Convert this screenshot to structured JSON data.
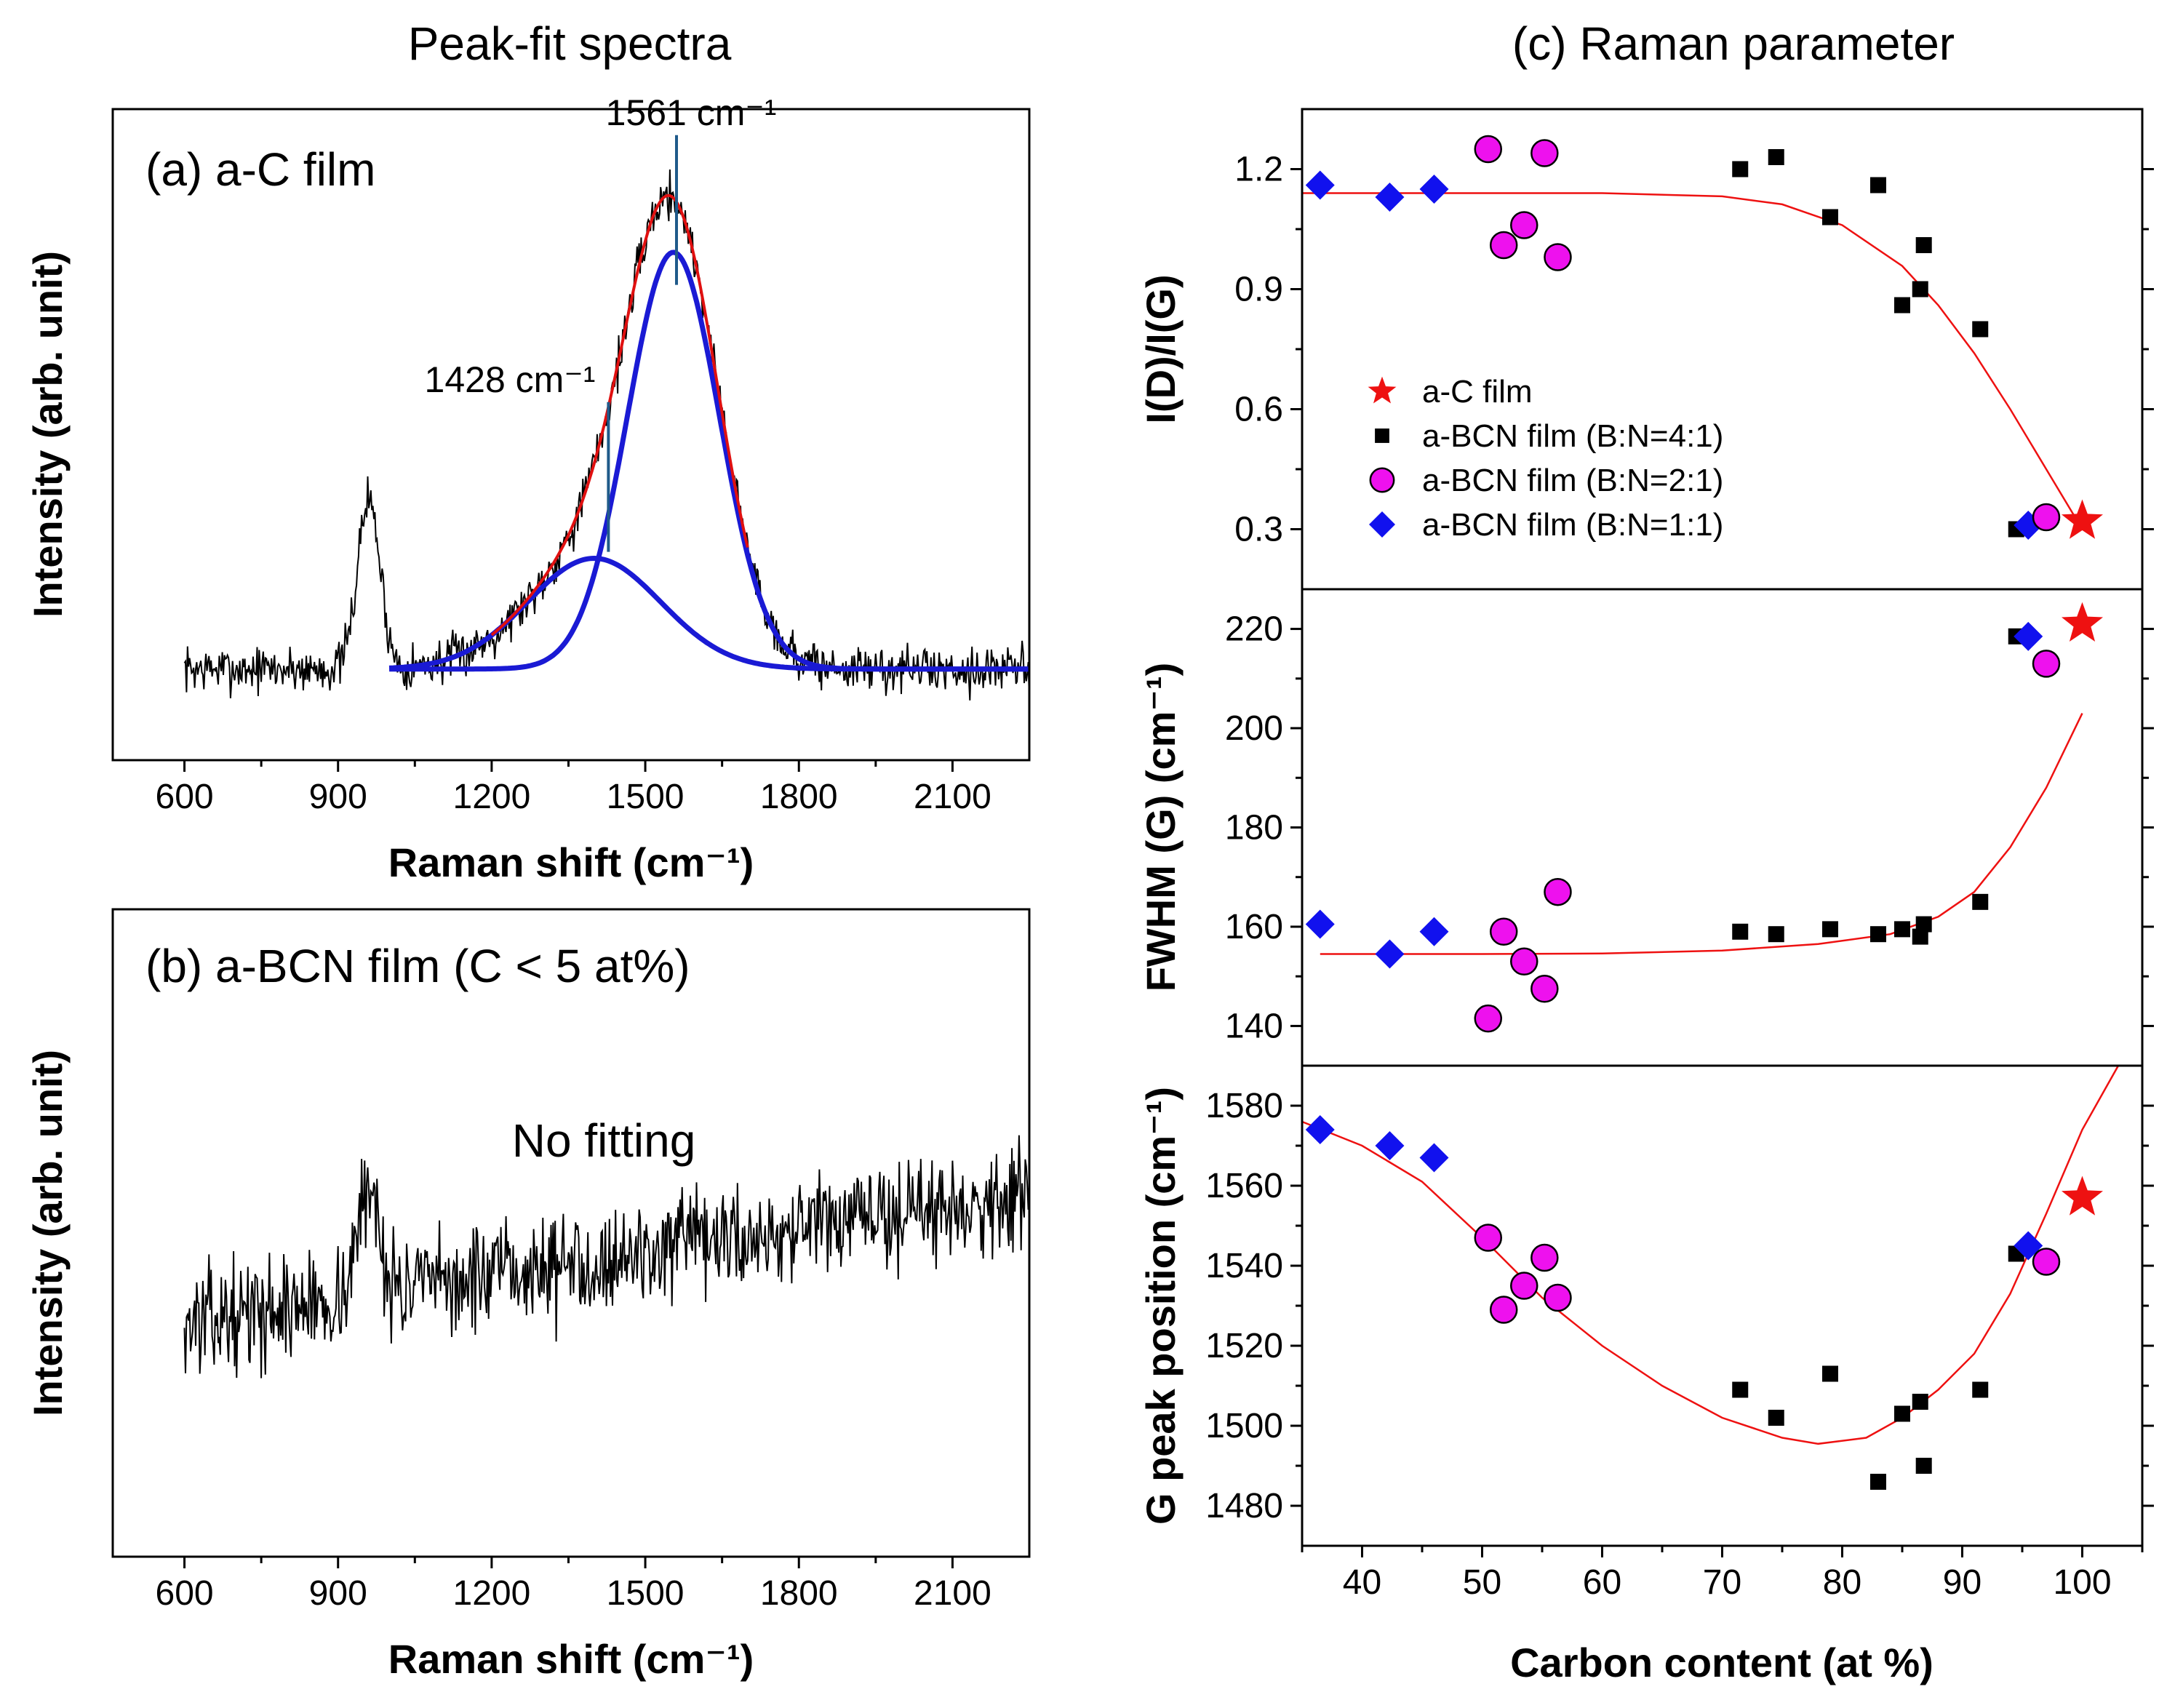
{
  "headings": {
    "left": "Peak-fit spectra",
    "right": "(c) Raman parameter"
  },
  "colors": {
    "spectrum": "#000000",
    "fit_component": "#1a1ad4",
    "fit_sum": "#e01010",
    "marker_line": "#1f5a8a",
    "ac_film": "#ee1111",
    "bcn_4to1": "#000000",
    "bcn_2to1": "#ee11ee",
    "bcn_1to1": "#1111ee",
    "trend": "#ee1111"
  },
  "chart_data": [
    {
      "id": "a",
      "type": "line",
      "panel_label": "(a) a-C film",
      "xlabel": "Raman shift (cm⁻¹)",
      "ylabel": "Intensity (arb. unit)",
      "xlim": [
        460,
        2250
      ],
      "ylim": [
        0,
        1
      ],
      "x_ticks": [
        600,
        900,
        1200,
        1500,
        1800,
        2100
      ],
      "x_tick_labels": [
        "600",
        "900",
        "1200",
        "1500",
        "1800",
        "2100"
      ],
      "spectrum": {
        "x_range": [
          600,
          2250
        ],
        "step": 2,
        "baseline": 0.14,
        "noise": 0.022,
        "seed": 7,
        "bumps": [
          {
            "center": 960,
            "width": 22,
            "height": 0.26
          }
        ]
      },
      "fit_components": [
        {
          "center": 1400,
          "sigma": 130,
          "height": 0.17
        },
        {
          "center": 1555,
          "sigma": 90,
          "height": 0.64
        }
      ],
      "fit_baseline": 0.14,
      "fit_range": [
        1000,
        2250
      ],
      "peak_markers": [
        {
          "x": 1428,
          "y_from": 0.32,
          "y_to": 0.55,
          "label": "1428 cm⁻¹"
        },
        {
          "x": 1561,
          "y_from": 0.73,
          "y_to": 0.96,
          "label": "1561 cm⁻¹"
        }
      ]
    },
    {
      "id": "b",
      "type": "line",
      "panel_label": "(b) a-BCN film (C < 5 at%)",
      "annotation": "No fitting",
      "xlabel": "Raman shift (cm⁻¹)",
      "ylabel": "Intensity (arb. unit)",
      "xlim": [
        460,
        2250
      ],
      "ylim": [
        0,
        1
      ],
      "x_ticks": [
        600,
        900,
        1200,
        1500,
        1800,
        2100
      ],
      "x_tick_labels": [
        "600",
        "900",
        "1200",
        "1500",
        "1800",
        "2100"
      ],
      "spectrum": {
        "x_range": [
          600,
          2250
        ],
        "step": 2,
        "baseline_start": 0.36,
        "baseline_end": 0.56,
        "noise": 0.05,
        "seed": 13,
        "bumps": [
          {
            "center": 960,
            "width": 22,
            "height": 0.16
          }
        ]
      }
    },
    {
      "id": "c1",
      "type": "scatter",
      "ylabel": "I(D)/I(G)",
      "xlim": [
        35,
        105
      ],
      "ylim": [
        0.15,
        1.35
      ],
      "y_ticks": [
        0.3,
        0.6,
        0.9,
        1.2
      ],
      "y_tick_labels": [
        "0.3",
        "0.6",
        "0.9",
        "1.2"
      ],
      "series": [
        {
          "name": "a-C film",
          "marker": "star",
          "points": [
            [
              100,
              0.32
            ]
          ]
        },
        {
          "name": "a-BCN film (B:N=4:1)",
          "marker": "square",
          "points": [
            [
              71.5,
              1.2
            ],
            [
              74.5,
              1.23
            ],
            [
              79,
              1.08
            ],
            [
              83,
              1.16
            ],
            [
              85,
              0.86
            ],
            [
              86.5,
              0.9
            ],
            [
              86.8,
              1.01
            ],
            [
              91.5,
              0.8
            ],
            [
              94.5,
              0.3
            ]
          ]
        },
        {
          "name": "a-BCN film (B:N=2:1)",
          "marker": "circle",
          "points": [
            [
              50.5,
              1.25
            ],
            [
              51.8,
              1.01
            ],
            [
              53.5,
              1.06
            ],
            [
              55.2,
              1.24
            ],
            [
              56.3,
              0.98
            ],
            [
              97,
              0.33
            ]
          ]
        },
        {
          "name": "a-BCN film (B:N=1:1)",
          "marker": "diamond",
          "points": [
            [
              36.5,
              1.16
            ],
            [
              42.3,
              1.13
            ],
            [
              46,
              1.15
            ],
            [
              95.5,
              0.31
            ]
          ]
        }
      ],
      "trend": [
        [
          35,
          1.14
        ],
        [
          50,
          1.14
        ],
        [
          60,
          1.14
        ],
        [
          70,
          1.132
        ],
        [
          75,
          1.112
        ],
        [
          80,
          1.06
        ],
        [
          85,
          0.958
        ],
        [
          88,
          0.86
        ],
        [
          91,
          0.74
        ],
        [
          94,
          0.6
        ],
        [
          97,
          0.45
        ],
        [
          100,
          0.3
        ]
      ],
      "legend": [
        {
          "label": "a-C film",
          "marker": "star"
        },
        {
          "label": "a-BCN film (B:N=4:1)",
          "marker": "square"
        },
        {
          "label": "a-BCN film (B:N=2:1)",
          "marker": "circle"
        },
        {
          "label": "a-BCN film (B:N=1:1)",
          "marker": "diamond"
        }
      ]
    },
    {
      "id": "c2",
      "type": "scatter",
      "ylabel": "FWHM (G) (cm⁻¹)",
      "xlim": [
        35,
        105
      ],
      "ylim": [
        132,
        228
      ],
      "y_ticks": [
        140,
        160,
        180,
        200,
        220
      ],
      "y_tick_labels": [
        "140",
        "160",
        "180",
        "200",
        "220"
      ],
      "series": [
        {
          "name": "a-C film",
          "marker": "star",
          "points": [
            [
              100,
              221
            ]
          ]
        },
        {
          "name": "a-BCN film (B:N=4:1)",
          "marker": "square",
          "points": [
            [
              71.5,
              159
            ],
            [
              74.5,
              158.5
            ],
            [
              79,
              159.5
            ],
            [
              83,
              158.5
            ],
            [
              85,
              159.5
            ],
            [
              86.5,
              158
            ],
            [
              86.8,
              160.5
            ],
            [
              91.5,
              165
            ],
            [
              94.5,
              218.5
            ]
          ]
        },
        {
          "name": "a-BCN film (B:N=2:1)",
          "marker": "circle",
          "points": [
            [
              50.5,
              141.5
            ],
            [
              51.8,
              159
            ],
            [
              53.5,
              153
            ],
            [
              55.2,
              147.5
            ],
            [
              56.3,
              167
            ],
            [
              97,
              213
            ]
          ]
        },
        {
          "name": "a-BCN film (B:N=1:1)",
          "marker": "diamond",
          "points": [
            [
              36.5,
              160.5
            ],
            [
              42.3,
              154.5
            ],
            [
              46,
              159
            ],
            [
              95.5,
              218.5
            ]
          ]
        }
      ],
      "trend": [
        [
          36.5,
          154.5
        ],
        [
          50,
          154.5
        ],
        [
          60,
          154.6
        ],
        [
          70,
          155.2
        ],
        [
          78,
          156.5
        ],
        [
          84,
          158.5
        ],
        [
          88,
          162
        ],
        [
          91,
          167
        ],
        [
          94,
          176
        ],
        [
          97,
          188
        ],
        [
          100,
          203
        ]
      ]
    },
    {
      "id": "c3",
      "type": "scatter",
      "xlabel": "Carbon content (at %)",
      "ylabel": "G peak position (cm⁻¹)",
      "xlim": [
        35,
        105
      ],
      "ylim": [
        1470,
        1590
      ],
      "x_ticks": [
        40,
        50,
        60,
        70,
        80,
        90,
        100
      ],
      "x_tick_labels": [
        "40",
        "50",
        "60",
        "70",
        "80",
        "90",
        "100"
      ],
      "y_ticks": [
        1480,
        1500,
        1520,
        1540,
        1560,
        1580
      ],
      "y_tick_labels": [
        "1480",
        "1500",
        "1520",
        "1540",
        "1560",
        "1580"
      ],
      "series": [
        {
          "name": "a-C film",
          "marker": "star",
          "points": [
            [
              100,
              1557
            ]
          ]
        },
        {
          "name": "a-BCN film (B:N=4:1)",
          "marker": "square",
          "points": [
            [
              71.5,
              1509
            ],
            [
              74.5,
              1502
            ],
            [
              79,
              1513
            ],
            [
              83,
              1486
            ],
            [
              85,
              1503
            ],
            [
              86.5,
              1506
            ],
            [
              86.8,
              1490
            ],
            [
              91.5,
              1509
            ],
            [
              94.5,
              1543
            ]
          ]
        },
        {
          "name": "a-BCN film (B:N=2:1)",
          "marker": "circle",
          "points": [
            [
              50.5,
              1547
            ],
            [
              51.8,
              1529
            ],
            [
              53.5,
              1535
            ],
            [
              55.2,
              1542
            ],
            [
              56.3,
              1532
            ],
            [
              97,
              1541
            ]
          ]
        },
        {
          "name": "a-BCN film (B:N=1:1)",
          "marker": "diamond",
          "points": [
            [
              36.5,
              1574
            ],
            [
              42.3,
              1570
            ],
            [
              46,
              1567
            ],
            [
              95.5,
              1545
            ]
          ]
        }
      ],
      "trend": [
        [
          35,
          1576
        ],
        [
          40,
          1570
        ],
        [
          45,
          1561
        ],
        [
          50,
          1547
        ],
        [
          55,
          1532
        ],
        [
          60,
          1520
        ],
        [
          65,
          1510
        ],
        [
          70,
          1502
        ],
        [
          75,
          1497
        ],
        [
          78,
          1495.5
        ],
        [
          82,
          1497
        ],
        [
          85,
          1502
        ],
        [
          88,
          1509
        ],
        [
          91,
          1518
        ],
        [
          94,
          1533
        ],
        [
          97,
          1553
        ],
        [
          100,
          1574
        ],
        [
          103,
          1590
        ]
      ]
    }
  ]
}
